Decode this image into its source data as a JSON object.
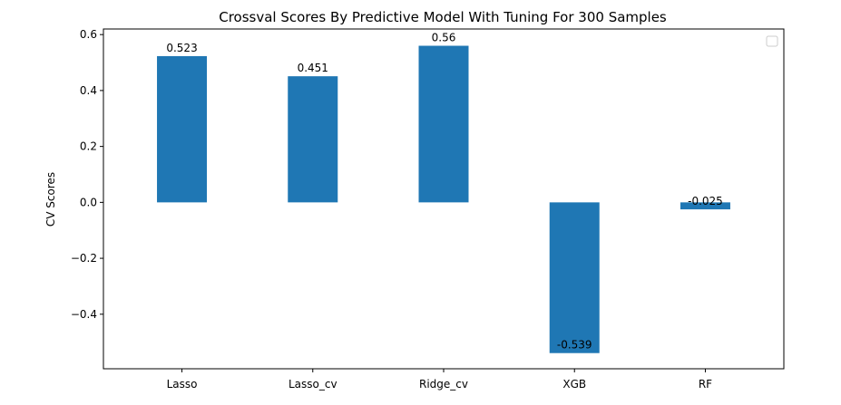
{
  "chart_data": {
    "type": "bar",
    "title": "Crossval Scores By Predictive Model With Tuning For 300 Samples",
    "xlabel": "",
    "ylabel": "CV Scores",
    "categories": [
      "Lasso",
      "Lasso_cv",
      "Ridge_cv",
      "XGB",
      "RF"
    ],
    "values": [
      0.523,
      0.451,
      0.56,
      -0.539,
      -0.025
    ],
    "data_labels": [
      "0.523",
      "0.451",
      "0.56",
      "-0.539",
      "-0.025"
    ],
    "ylim": [
      -0.595,
      0.62
    ],
    "yticks": [
      -0.4,
      -0.2,
      0.0,
      0.2,
      0.4,
      0.6
    ],
    "ytick_labels": [
      "−0.4",
      "−0.2",
      "0.0",
      "0.2",
      "0.4",
      "0.6"
    ],
    "bar_color": "#1f77b4",
    "legend": {
      "placement": "top-right",
      "entries": []
    },
    "grid": false
  }
}
